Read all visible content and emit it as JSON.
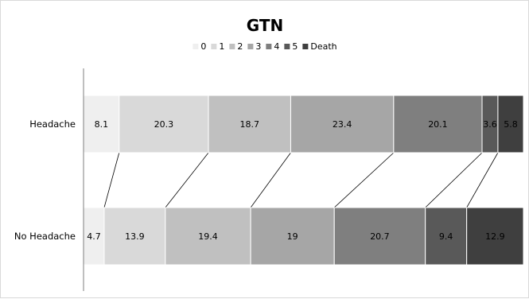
{
  "chart_data": {
    "type": "bar",
    "orientation": "horizontal",
    "stacked": true,
    "title": "GTN",
    "legend_position": "top",
    "categories": [
      "Headache",
      "No Headache"
    ],
    "series": [
      {
        "name": "0",
        "color": "#efefef",
        "values": [
          8.1,
          4.7
        ]
      },
      {
        "name": "1",
        "color": "#d9d9d9",
        "values": [
          20.3,
          13.9
        ]
      },
      {
        "name": "2",
        "color": "#c0c0c0",
        "values": [
          18.7,
          19.4
        ]
      },
      {
        "name": "3",
        "color": "#a6a6a6",
        "values": [
          23.4,
          19
        ]
      },
      {
        "name": "4",
        "color": "#7f7f7f",
        "values": [
          20.1,
          20.7
        ]
      },
      {
        "name": "5",
        "color": "#595959",
        "values": [
          3.6,
          9.4
        ]
      },
      {
        "name": "Death",
        "color": "#3f3f3f",
        "values": [
          5.8,
          12.9
        ]
      }
    ],
    "value_labels": [
      [
        "8.1",
        "20.3",
        "18.7",
        "23.4",
        "20.1",
        "3.6",
        "5.8"
      ],
      [
        "4.7",
        "13.9",
        "19.4",
        "19",
        "20.7",
        "9.4",
        "12.9"
      ]
    ],
    "series_lines": true,
    "xlim": [
      0,
      100
    ]
  }
}
